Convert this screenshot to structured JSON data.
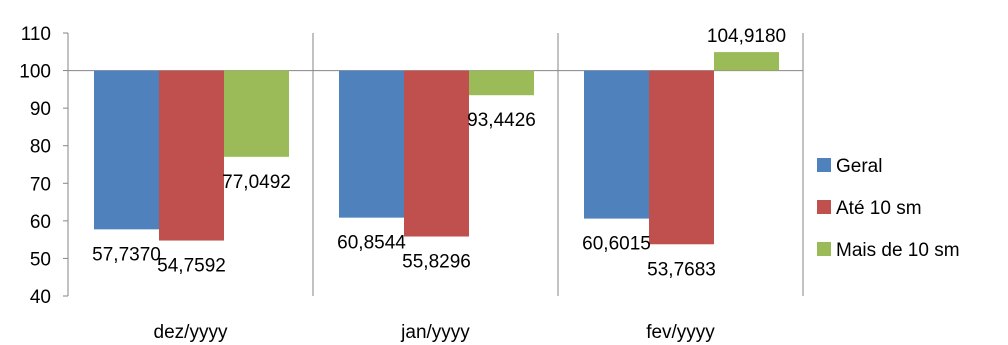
{
  "chart_data": {
    "type": "bar",
    "baseline": 100,
    "categories": [
      "dez/yyyy",
      "jan/yyyy",
      "fev/yyyy"
    ],
    "series": [
      {
        "name": "Geral",
        "color": "#4f81bd",
        "values": [
          57.737,
          60.8544,
          60.6015
        ],
        "labels": [
          "57,7370",
          "60,8544",
          "60,6015"
        ]
      },
      {
        "name": "Até 10 sm",
        "color": "#c0504d",
        "values": [
          54.7592,
          55.8296,
          53.7683
        ],
        "labels": [
          "54,7592",
          "55,8296",
          "53,7683"
        ]
      },
      {
        "name": "Mais de 10 sm",
        "color": "#9bbb59",
        "values": [
          77.0492,
          93.4426,
          104.918
        ],
        "labels": [
          "77,0492",
          "93,4426",
          "104,9180"
        ]
      }
    ],
    "ylim": [
      40,
      110
    ],
    "yticks": [
      "110",
      "100",
      "90",
      "80",
      "70",
      "60",
      "50",
      "40"
    ],
    "legend_position": "right",
    "grid": false
  }
}
